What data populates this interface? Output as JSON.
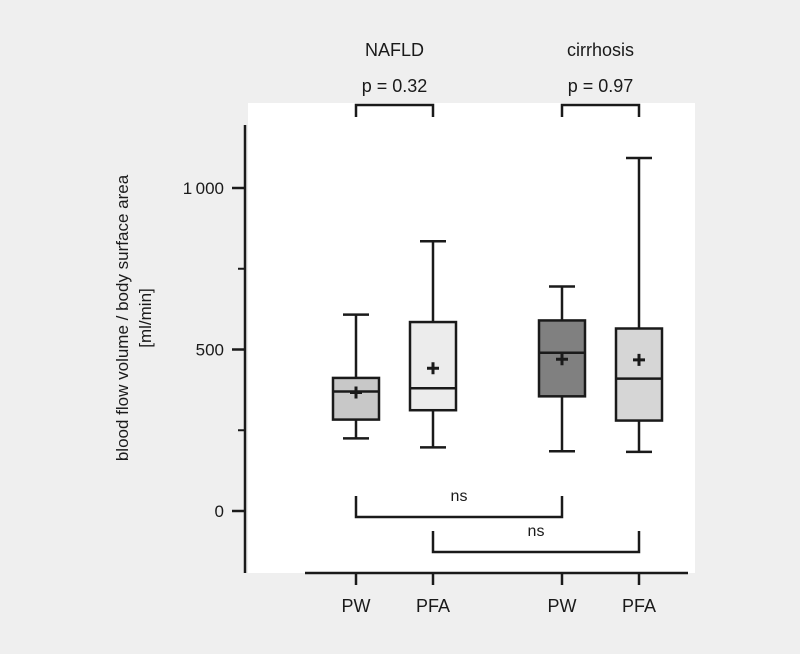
{
  "chart_data": {
    "type": "box",
    "ylabel_line1": "blood flow volume / body surface area",
    "ylabel_line2": "[ml/min]",
    "ylim": [
      -200,
      1200
    ],
    "yticks": [
      0,
      500,
      1000
    ],
    "ytick_labels": [
      "0",
      "500",
      "1 000"
    ],
    "groups": [
      {
        "name": "NAFLD",
        "p_label": "p = 0.32"
      },
      {
        "name": "cirrhosis",
        "p_label": "p = 0.97"
      }
    ],
    "boxes": [
      {
        "label": "PW",
        "group": 0,
        "min": 225,
        "q1": 283,
        "median": 370,
        "q3": 412,
        "max": 608,
        "mean": 367,
        "fill": "#c8c8c8"
      },
      {
        "label": "PFA",
        "group": 0,
        "min": 197,
        "q1": 312,
        "median": 380,
        "q3": 585,
        "max": 835,
        "mean": 442,
        "fill": "#ececec"
      },
      {
        "label": "PW",
        "group": 1,
        "min": 185,
        "q1": 355,
        "median": 490,
        "q3": 590,
        "max": 695,
        "mean": 470,
        "fill": "#808080"
      },
      {
        "label": "PFA",
        "group": 1,
        "min": 183,
        "q1": 280,
        "median": 410,
        "q3": 565,
        "max": 1093,
        "mean": 468,
        "fill": "#d6d6d6"
      }
    ],
    "comparisons": [
      {
        "from": 0,
        "to": 2,
        "label": "ns"
      },
      {
        "from": 1,
        "to": 3,
        "label": "ns"
      }
    ],
    "colors": {
      "stroke": "#1a1a1a",
      "panel": "#ffffff",
      "background": "#efefef"
    }
  }
}
